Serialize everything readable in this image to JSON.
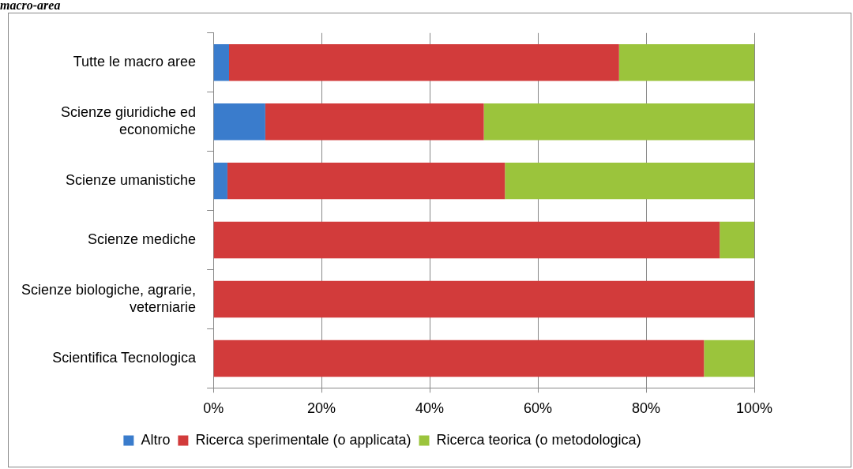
{
  "chart_data": {
    "type": "bar",
    "orientation": "horizontal",
    "stacked": true,
    "title": "macro-area",
    "categories": [
      "Tutte le macro aree",
      "Scienze giuridiche ed economiche",
      "Scienze umanistiche",
      "Scienze mediche",
      "Scienze biologiche, agrarie, veterniarie",
      "Scientifica Tecnologica"
    ],
    "series": [
      {
        "name": "Altro",
        "color": "#3a7ccc",
        "values": [
          2.9,
          9.6,
          2.6,
          0,
          0,
          0
        ]
      },
      {
        "name": "Ricerca sperimentale (o applicata)",
        "color": "#d23b3b",
        "values": [
          72.1,
          40.4,
          51.3,
          93.6,
          100,
          90.7
        ]
      },
      {
        "name": "Ricerca teorica (o metodologica)",
        "color": "#9bc43c",
        "values": [
          25,
          50,
          46.1,
          6.4,
          0,
          9.3
        ]
      }
    ],
    "xlim": [
      0,
      100
    ],
    "xticks": [
      {
        "value": 0,
        "label": "0%"
      },
      {
        "value": 20,
        "label": "20%"
      },
      {
        "value": 40,
        "label": "40%"
      },
      {
        "value": 60,
        "label": "60%"
      },
      {
        "value": 80,
        "label": "80%"
      },
      {
        "value": 100,
        "label": "100%"
      }
    ],
    "grid": "x",
    "legend": "bottom"
  }
}
